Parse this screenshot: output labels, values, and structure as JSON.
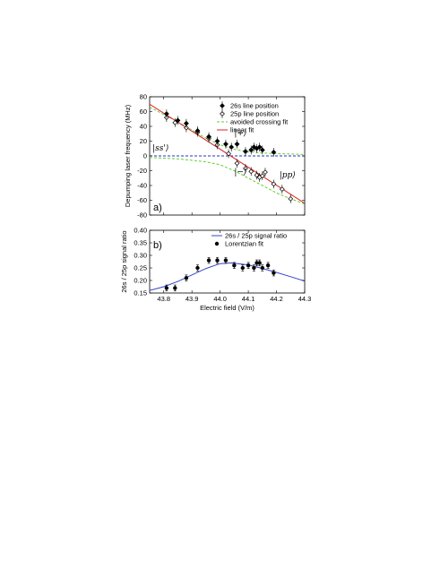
{
  "chart_data": [
    {
      "type": "scatter",
      "panel_label": "a)",
      "xlim": [
        43.75,
        44.3
      ],
      "ylim": [
        -80,
        80
      ],
      "yticks": [
        -80,
        -60,
        -40,
        -20,
        0,
        20,
        40,
        60,
        80
      ],
      "ylabel": "Depumping laser frequency (MHz)",
      "legend_position": "top-right",
      "series": [
        {
          "name": "26s line position",
          "marker": "filled-diamond",
          "x": [
            43.81,
            43.85,
            43.88,
            43.92,
            43.96,
            43.99,
            44.02,
            44.04,
            44.06,
            44.09,
            44.11,
            44.12,
            44.13,
            44.14,
            44.15,
            44.19
          ],
          "y": [
            57,
            48,
            44,
            34,
            26,
            20,
            16,
            12,
            16,
            6,
            8,
            12,
            10,
            12,
            8,
            5
          ]
        },
        {
          "name": "25p line position",
          "marker": "open-diamond",
          "x": [
            43.81,
            43.84,
            43.88,
            43.92,
            43.96,
            43.99,
            44.03,
            44.06,
            44.09,
            44.11,
            44.13,
            44.14,
            44.15,
            44.16,
            44.19,
            44.22,
            44.25
          ],
          "y": [
            52,
            45,
            38,
            32,
            24,
            15,
            3,
            -10,
            -17,
            -21,
            -26,
            -29,
            -27,
            -22,
            -38,
            -45,
            -58
          ]
        },
        {
          "name": "avoided crossing fit",
          "style": "green-dashed",
          "x": [
            43.75,
            43.8,
            43.85,
            43.9,
            43.95,
            44.0,
            44.05,
            44.1,
            44.15,
            44.2,
            44.25,
            44.3
          ],
          "y_upper": [
            66,
            56,
            46,
            35,
            24,
            15,
            9,
            5.5,
            4,
            3,
            2.5,
            2
          ],
          "y_lower": [
            -2,
            -3,
            -4,
            -6,
            -8,
            -12,
            -20,
            -30,
            -40,
            -50,
            -58,
            -65
          ]
        },
        {
          "name": "linear fit",
          "style": "red-solid",
          "x": [
            43.75,
            44.3
          ],
          "y": [
            70,
            -64
          ]
        },
        {
          "name": "",
          "style": "blue-dashed",
          "x": [
            43.75,
            44.3
          ],
          "y": [
            0,
            0
          ]
        }
      ],
      "annotations": [
        {
          "text": "|+⟩",
          "x": 44.05,
          "y": 28
        },
        {
          "text": "|ss'⟩",
          "x": 43.76,
          "y": 7
        },
        {
          "text": "|−⟩",
          "x": 44.05,
          "y": -25
        },
        {
          "text": "|pp⟩",
          "x": 44.21,
          "y": -29
        }
      ]
    },
    {
      "type": "scatter",
      "panel_label": "b)",
      "xlim": [
        43.75,
        44.3
      ],
      "ylim": [
        0.15,
        0.4
      ],
      "xticks": [
        43.8,
        43.9,
        44.0,
        44.1,
        44.2,
        44.3
      ],
      "yticks": [
        0.15,
        0.2,
        0.25,
        0.3,
        0.35,
        0.4
      ],
      "xlabel": "Electric field (V/m)",
      "ylabel": "26s / 25p signal ratio",
      "legend_position": "top-right",
      "series": [
        {
          "name": "26s / 25p signal ratio",
          "marker": "filled-circle",
          "x": [
            43.81,
            43.84,
            43.88,
            43.92,
            43.96,
            43.99,
            44.02,
            44.05,
            44.08,
            44.1,
            44.12,
            44.13,
            44.14,
            44.15,
            44.17,
            44.19
          ],
          "y": [
            0.17,
            0.17,
            0.21,
            0.25,
            0.28,
            0.28,
            0.28,
            0.26,
            0.25,
            0.26,
            0.25,
            0.27,
            0.27,
            0.25,
            0.26,
            0.23
          ],
          "yerr": 0.012
        },
        {
          "name": "Lorentzian fit",
          "style": "blue-solid",
          "x": [
            43.75,
            43.8,
            43.85,
            43.9,
            43.95,
            44.0,
            44.04,
            44.1,
            44.15,
            44.2,
            44.25,
            44.3
          ],
          "y": [
            0.16,
            0.175,
            0.196,
            0.222,
            0.248,
            0.267,
            0.27,
            0.262,
            0.248,
            0.232,
            0.215,
            0.198
          ]
        }
      ]
    }
  ]
}
